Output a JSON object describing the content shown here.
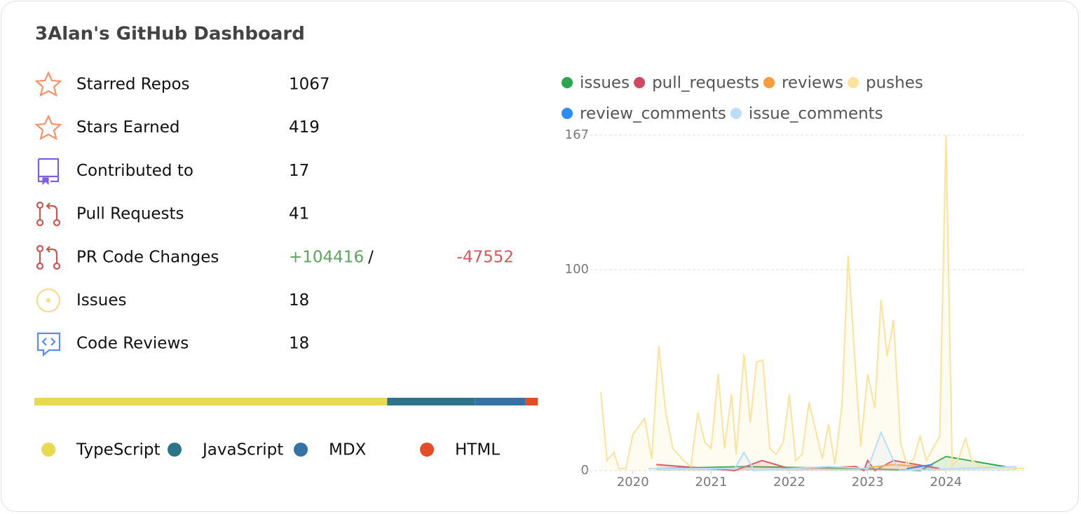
{
  "header": {
    "title": "3Alan's GitHub Dashboard"
  },
  "stats": [
    {
      "label": "Starred Repos",
      "value": 1067
    },
    {
      "label": "Stars Earned",
      "value": 419
    },
    {
      "label": "Contributed to",
      "value": 17
    },
    {
      "label": "Pull Requests",
      "value": 41
    },
    {
      "label": "PR Code Changes",
      "additions": "+104416",
      "separator": "/",
      "deletions": "-47552"
    },
    {
      "label": "Issues",
      "value": 18
    },
    {
      "label": "Code Reviews",
      "value": 18
    }
  ],
  "languages": [
    {
      "name": "TypeScript",
      "percent": 70.1,
      "color": "#e8d94f"
    },
    {
      "name": "JavaScript",
      "percent": 17.4,
      "color": "#2b7489"
    },
    {
      "name": "MDX",
      "percent": 10.0,
      "color": "#3572a5"
    },
    {
      "name": "HTML",
      "percent": 2.5,
      "color": "#e34c26"
    }
  ],
  "chart_data": {
    "type": "line",
    "xlim": [
      2019.59,
      2025.0
    ],
    "xticks": [
      2020,
      2021,
      2022,
      2023,
      2024
    ],
    "ylim": [
      0,
      167
    ],
    "yticks": [
      0,
      100,
      167
    ],
    "grid": true,
    "series": [
      {
        "name": "issues",
        "color": "#2da44e",
        "x": [
          2020.3,
          2021.42,
          2022.91,
          2023.67,
          2024.0,
          2024.9
        ],
        "values": [
          1,
          2,
          1,
          0,
          7,
          1
        ]
      },
      {
        "name": "pull_requests",
        "color": "#d1475f",
        "x": [
          2020.3,
          2021.3,
          2021.65,
          2022.0,
          2022.85,
          2022.95,
          2023.0,
          2023.09,
          2023.33,
          2023.92
        ],
        "values": [
          3,
          0,
          5,
          1,
          2,
          0,
          5,
          0,
          5,
          1
        ]
      },
      {
        "name": "reviews",
        "color": "#fb9c3c",
        "x": [
          2022.91,
          2023.33,
          2023.67
        ],
        "values": [
          1,
          3,
          2
        ]
      },
      {
        "name": "pushes",
        "color": "#fbe39d",
        "x": [
          2019.59,
          2019.67,
          2019.76,
          2019.82,
          2019.91,
          2020.0,
          2020.15,
          2020.24,
          2020.33,
          2020.42,
          2020.51,
          2020.65,
          2020.74,
          2020.83,
          2020.92,
          2021.0,
          2021.09,
          2021.17,
          2021.26,
          2021.32,
          2021.42,
          2021.5,
          2021.58,
          2021.66,
          2021.75,
          2021.83,
          2021.92,
          2022.0,
          2022.08,
          2022.16,
          2022.25,
          2022.33,
          2022.42,
          2022.5,
          2022.58,
          2022.67,
          2022.75,
          2022.91,
          2023.0,
          2023.09,
          2023.17,
          2023.25,
          2023.33,
          2023.42,
          2023.5,
          2023.59,
          2023.67,
          2023.75,
          2023.83,
          2023.92,
          2024.0,
          2024.08,
          2024.17,
          2024.25,
          2024.33,
          2024.46,
          2025.0
        ],
        "values": [
          39,
          5,
          9,
          1,
          1,
          18,
          26,
          6,
          62,
          29,
          11,
          5,
          2,
          29,
          14,
          11,
          48,
          11,
          38,
          8,
          58,
          24,
          54,
          55,
          11,
          8,
          14,
          38,
          5,
          8,
          34,
          21,
          6,
          23,
          3,
          32,
          107,
          12,
          48,
          31,
          85,
          57,
          75,
          14,
          3,
          6,
          17,
          5,
          11,
          17,
          167,
          2,
          7,
          16,
          5,
          2,
          1
        ]
      },
      {
        "name": "review_comments",
        "color": "#2f8cf6",
        "x": [
          2023.5,
          2023.83
        ],
        "values": [
          1,
          3
        ]
      },
      {
        "name": "issue_comments",
        "color": "#bcdcf8",
        "x": [
          2020.2,
          2021.3,
          2021.42,
          2021.55,
          2022.5,
          2023.0,
          2023.17,
          2023.33,
          2023.42,
          2024.9
        ],
        "values": [
          1,
          1,
          9,
          0,
          2,
          1,
          19,
          5,
          0,
          2
        ]
      }
    ]
  }
}
